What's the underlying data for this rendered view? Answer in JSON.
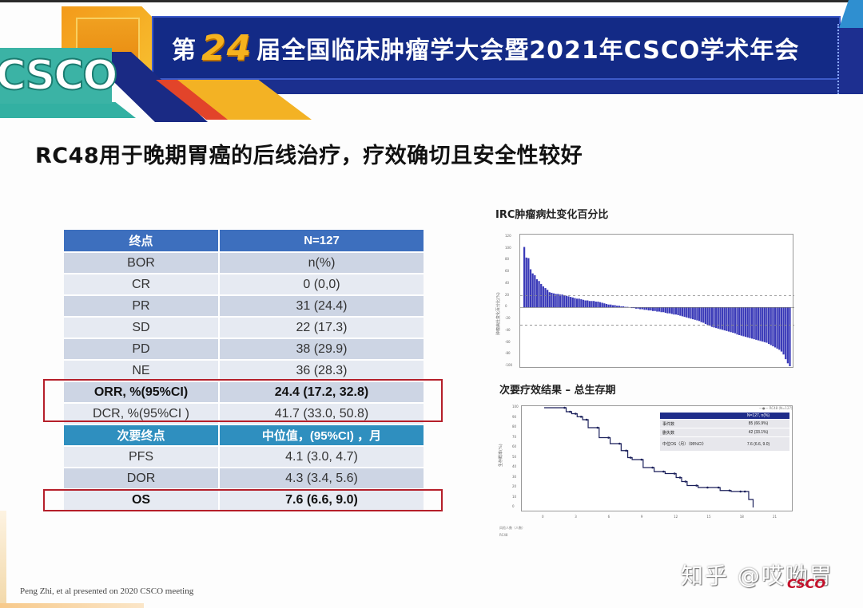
{
  "banner": {
    "logo": "CSCO",
    "prefix": "第",
    "number": "24",
    "title_rest": "届全国临床肿瘤学大会暨2021年CSCO学术年会"
  },
  "slide": {
    "title": "RC48用于晚期胃癌的后线治疗，疗效确切且安全性较好"
  },
  "table": {
    "header": [
      "终点",
      "N=127"
    ],
    "rows": [
      [
        "BOR",
        "n(%)"
      ],
      [
        "CR",
        "0 (0,0)"
      ],
      [
        "PR",
        "31 (24.4)"
      ],
      [
        "SD",
        "22 (17.3)"
      ],
      [
        "PD",
        "38 (29.9)"
      ],
      [
        "NE",
        "36 (28.3)"
      ],
      [
        "ORR, %(95%CI)",
        "24.4 (17.2, 32.8)"
      ],
      [
        "DCR, %(95%CI )",
        "41.7 (33.0, 50.8)"
      ]
    ],
    "header2": [
      "次要终点",
      "中位值，(95%CI) ，月"
    ],
    "rows2": [
      [
        "PFS",
        "4.1 (3.0, 4.7)"
      ],
      [
        "DOR",
        "4.3 (3.4, 5.6)"
      ],
      [
        "OS",
        "7.6 (6.6, 9.0)"
      ]
    ],
    "highlight_color": "#b51f2a",
    "header_color": "#3d6fbe"
  },
  "waterfall": {
    "title": "IRC肿瘤病灶变化百分比",
    "yticks": [
      "120",
      "100",
      "80",
      "60",
      "40",
      "20",
      "0",
      "-20",
      "-40",
      "-60",
      "-80",
      "-100"
    ],
    "bar_color": "#3a3ab8"
  },
  "km": {
    "title": "次要疗效结果 – 总生存期",
    "yticks": [
      "100",
      "90",
      "80",
      "70",
      "60",
      "50",
      "40",
      "30",
      "20",
      "10",
      "0"
    ],
    "xticks": [
      "0",
      "3",
      "6",
      "9",
      "12",
      "15",
      "18",
      "21"
    ],
    "inset": {
      "header": [
        "",
        "N=127, n(%)"
      ],
      "rows": [
        [
          "事件数",
          "85 (66.9%)"
        ],
        [
          "删失数",
          "42 (33.1%)"
        ],
        [
          "中位OS（月）（95%CI）",
          "7.6 (6.6, 9.0)"
        ]
      ]
    }
  },
  "chart_data": [
    {
      "type": "bar",
      "title": "IRC肿瘤病灶变化百分比",
      "xlabel": "",
      "ylabel": "肿瘤病灶变化百分比(%)",
      "ylim": [
        -100,
        120
      ],
      "reference_lines": [
        20,
        -30
      ],
      "values": [
        103,
        85,
        84,
        65,
        58,
        55,
        48,
        45,
        40,
        36,
        33,
        30,
        26,
        25,
        24,
        23,
        23,
        22,
        22,
        21,
        20,
        19,
        18,
        17,
        16,
        15,
        15,
        14,
        13,
        12,
        12,
        11,
        11,
        11,
        10,
        10,
        9,
        8,
        7,
        6,
        5,
        5,
        4,
        4,
        3,
        3,
        2,
        2,
        1,
        1,
        0,
        -1,
        -1,
        -2,
        -2,
        -3,
        -3,
        -4,
        -4,
        -5,
        -5,
        -6,
        -6,
        -7,
        -7,
        -8,
        -8,
        -9,
        -10,
        -10,
        -11,
        -12,
        -12,
        -13,
        -14,
        -15,
        -16,
        -17,
        -18,
        -19,
        -20,
        -21,
        -22,
        -23,
        -25,
        -26,
        -28,
        -30,
        -31,
        -33,
        -34,
        -35,
        -36,
        -37,
        -38,
        -39,
        -40,
        -41,
        -42,
        -43,
        -44,
        -46,
        -47,
        -48,
        -49,
        -50,
        -51,
        -52,
        -53,
        -54,
        -55,
        -56,
        -57,
        -58,
        -59,
        -60,
        -62,
        -64,
        -66,
        -68,
        -70,
        -72,
        -75,
        -80,
        -88,
        -95,
        -100
      ]
    },
    {
      "type": "line",
      "title": "次要疗效结果 – 总生存期",
      "xlabel": "生存时间（月）",
      "ylabel": "生存概率(%)",
      "xlim": [
        0,
        21
      ],
      "ylim": [
        0,
        100
      ],
      "series": [
        {
          "name": "RC48 (N=127)",
          "x": [
            0,
            1,
            2,
            2.5,
            3,
            3.5,
            4,
            5,
            6,
            7,
            7.6,
            8,
            9,
            10,
            11,
            12,
            12.5,
            13,
            14,
            15,
            16,
            17,
            18,
            18.4,
            18.6,
            19
          ],
          "y": [
            100,
            100,
            96,
            94,
            91,
            88,
            80,
            70,
            64,
            57,
            50,
            48,
            40,
            36,
            34,
            30,
            26,
            22,
            20,
            20,
            17,
            16,
            16,
            16,
            8,
            0
          ]
        }
      ]
    }
  ],
  "footer": {
    "reference": "Peng Zhi, et al presented on 2020 CSCO meeting",
    "watermark": "知乎 @哎呦胃",
    "mini_logo": "CSCO"
  }
}
